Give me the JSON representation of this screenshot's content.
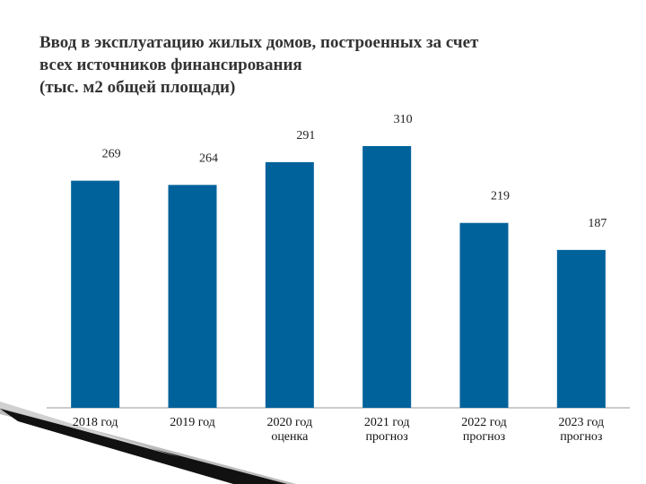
{
  "chart_data": {
    "type": "bar",
    "title": [
      "Ввод  в эксплуатацию жилых домов, построенных за счет",
      "всех источников финансирования",
      "(тыс. м2 общей площади)"
    ],
    "categories": [
      "2018 год",
      "2019 год",
      "2020 год\nоценка",
      "2021  год\nпрогноз",
      "2022 год\nпрогноз",
      "2023 год\nпрогноз"
    ],
    "values": [
      269,
      264,
      291,
      310,
      219,
      187
    ],
    "color": "#00629b",
    "ylim": [
      0,
      310
    ]
  }
}
